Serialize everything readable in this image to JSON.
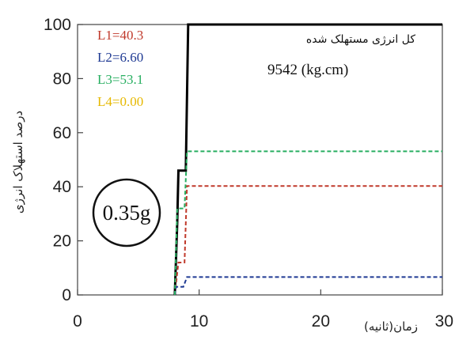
{
  "chart_data": {
    "type": "line",
    "title": "",
    "xlabel": "زمان(ثانیه)",
    "ylabel": "درصد استهلاک انرژی",
    "xlim": [
      0,
      30
    ],
    "ylim": [
      0,
      100
    ],
    "x_ticks": [
      "0",
      "10",
      "20",
      "30"
    ],
    "y_ticks": [
      "0",
      "20",
      "40",
      "60",
      "80",
      "100"
    ],
    "grid": false,
    "series": [
      {
        "name": "",
        "color": "#000000",
        "style": "solid",
        "points": [
          [
            8,
            0
          ],
          [
            8.2,
            27
          ],
          [
            8.3,
            46
          ],
          [
            8.9,
            46
          ],
          [
            9.1,
            100
          ],
          [
            30,
            100
          ]
        ]
      },
      {
        "name": "L1",
        "color": "#c0392b",
        "style": "dashed",
        "points": [
          [
            8,
            0
          ],
          [
            8.3,
            12
          ],
          [
            8.8,
            12
          ],
          [
            9.0,
            40.3
          ],
          [
            30,
            40.3
          ]
        ]
      },
      {
        "name": "L2",
        "color": "#1f3a93",
        "style": "dashed",
        "points": [
          [
            8,
            0
          ],
          [
            8.1,
            3
          ],
          [
            8.7,
            3
          ],
          [
            9.0,
            6.6
          ],
          [
            30,
            6.6
          ]
        ]
      },
      {
        "name": "L3",
        "color": "#27ae60",
        "style": "dashed",
        "points": [
          [
            8,
            0
          ],
          [
            8.2,
            32
          ],
          [
            8.8,
            32
          ],
          [
            9.0,
            53.1
          ],
          [
            30,
            53.1
          ]
        ]
      }
    ],
    "annotations": {
      "legend_values": [
        {
          "text": "L1=40.3",
          "color": "#c0392b"
        },
        {
          "text": "L2=6.60",
          "color": "#1f3a93"
        },
        {
          "text": "L3=53.1",
          "color": "#27ae60"
        },
        {
          "text": "L4=0.00",
          "color": "#e6b800"
        }
      ],
      "total_label": "کل انرژی مستهلک شده",
      "total_value": "9542  (kg.cm)",
      "pga": "0.35g"
    }
  }
}
